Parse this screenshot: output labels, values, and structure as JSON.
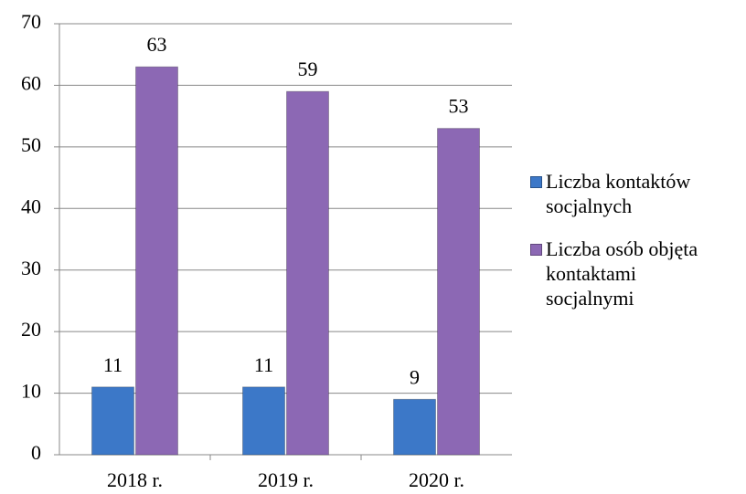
{
  "chart_data": {
    "type": "bar",
    "categories": [
      "2018 r.",
      "2019 r.",
      "2020 r."
    ],
    "series": [
      {
        "name": "Liczba kontaktów socjalnych",
        "color": "#3c78c8",
        "values": [
          11,
          11,
          9
        ]
      },
      {
        "name": "Liczba osób objęta kontaktami socjalnymi",
        "color": "#8c68b4",
        "values": [
          63,
          59,
          53
        ]
      }
    ],
    "ylim": [
      0,
      70
    ],
    "yticks": [
      0,
      10,
      20,
      30,
      40,
      50,
      60,
      70
    ],
    "grid": true,
    "legend": "right"
  }
}
